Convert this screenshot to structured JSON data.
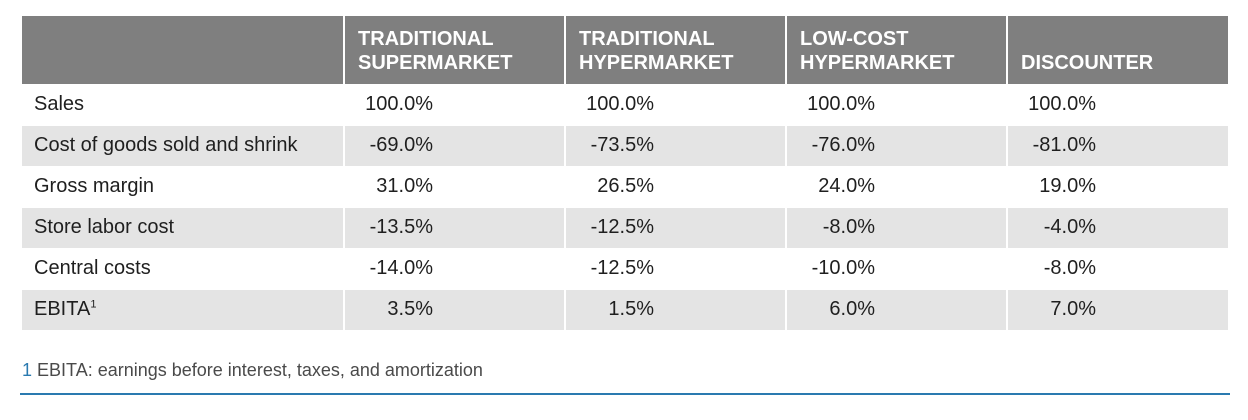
{
  "table": {
    "columns": [
      "",
      "TRADITIONAL SUPERMARKET",
      "TRADITIONAL HYPERMARKET",
      "LOW-COST HYPERMARKET",
      "DISCOUNTER"
    ],
    "column_lines": [
      [],
      [
        "TRADITIONAL",
        "SUPERMARKET"
      ],
      [
        "TRADITIONAL",
        "HYPERMARKET"
      ],
      [
        "LOW-COST",
        "HYPERMARKET"
      ],
      [
        "DISCOUNTER"
      ]
    ],
    "rows": [
      {
        "label": "Sales",
        "values": [
          "100.0%",
          "100.0%",
          "100.0%",
          "100.0%"
        ]
      },
      {
        "label": "Cost of goods sold and shrink",
        "values": [
          "-69.0%",
          "-73.5%",
          "-76.0%",
          "-81.0%"
        ]
      },
      {
        "label": "Gross margin",
        "values": [
          "31.0%",
          "26.5%",
          "24.0%",
          "19.0%"
        ]
      },
      {
        "label": "Store labor cost",
        "values": [
          "-13.5%",
          "-12.5%",
          "-8.0%",
          "-4.0%"
        ]
      },
      {
        "label": "Central costs",
        "values": [
          "-14.0%",
          "-12.5%",
          "-10.0%",
          "-8.0%"
        ]
      },
      {
        "label": "EBITA",
        "label_sup": "1",
        "values": [
          "3.5%",
          "1.5%",
          "6.0%",
          "7.0%"
        ]
      }
    ]
  },
  "footnote": {
    "mark": "1",
    "text": "EBITA: earnings before interest, taxes, and amortization"
  },
  "colors": {
    "header_bg": "#7f7f7f",
    "alt_row_bg": "#e4e4e4",
    "accent": "#2a7ab0"
  }
}
